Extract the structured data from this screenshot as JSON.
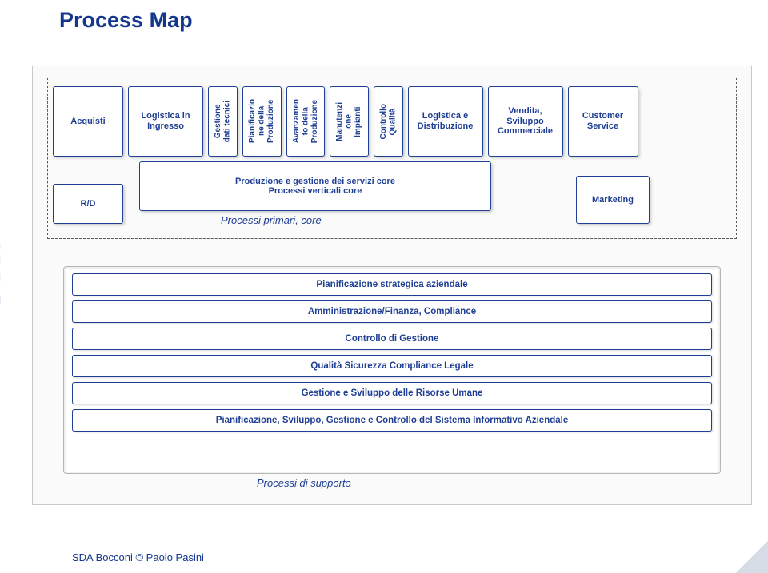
{
  "title": "Process Map",
  "watermark_text": "oni",
  "footer": "SDA Bocconi © Paolo Pasini",
  "colors": {
    "accent": "#1f3f94",
    "title": "#13378e",
    "frame_border": "#c8c8c8",
    "frame_bg": "#fafafa",
    "dash": "#595959",
    "watermark": "#dfe6ef"
  },
  "top_row": [
    {
      "type": "wide",
      "label": "Acquisti"
    },
    {
      "type": "wider",
      "label": "Logistica in\nIngresso"
    },
    {
      "type": "thin",
      "label": "Gestione\ndati tecnici"
    },
    {
      "type": "thin",
      "label": "Pianificazio\nne della\nProduzione"
    },
    {
      "type": "thin",
      "label": "Avanzamen\nto della\nProduzione"
    },
    {
      "type": "thin",
      "label": "Manutenzi\none\nImpianti"
    },
    {
      "type": "thin",
      "label": "Controllo\nQualità"
    },
    {
      "type": "wider",
      "label": "Logistica e\nDistribuzione"
    },
    {
      "type": "wider",
      "label": "Vendita,\nSviluppo\nCommerciale"
    },
    {
      "type": "wide",
      "label": "Customer\nService"
    }
  ],
  "mid": {
    "rd": "R/D",
    "marketing": "Marketing",
    "core_line1": "Produzione e gestione dei servizi core",
    "core_line2": "Processi verticali core",
    "primari_label": "Processi primari, core"
  },
  "support": {
    "bars": [
      "Pianificazione strategica aziendale",
      "Amministrazione/Finanza, Compliance",
      "Controllo di Gestione",
      "Qualità Sicurezza Compliance Legale",
      "Gestione e Sviluppo delle Risorse Umane",
      "Pianificazione, Sviluppo, Gestione e Controllo del Sistema Informativo Aziendale"
    ],
    "label": "Processi di supporto"
  }
}
